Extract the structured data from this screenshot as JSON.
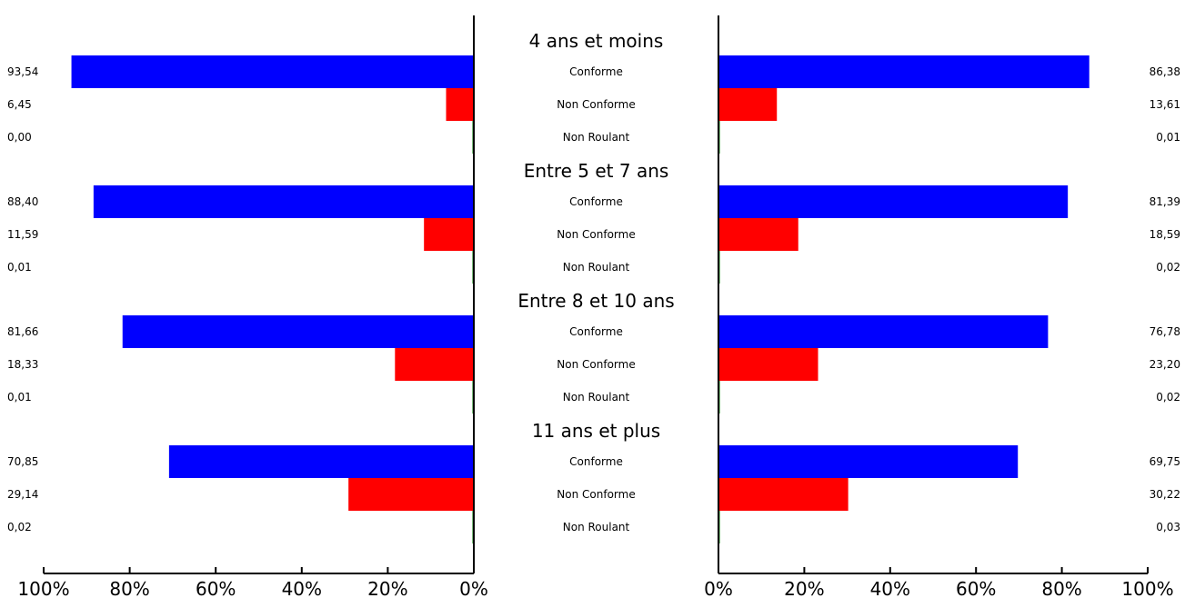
{
  "chart_data": {
    "type": "bar",
    "orientation": "horizontal-butterfly",
    "categories": [
      "Conforme",
      "Non Conforme",
      "Non Roulant"
    ],
    "groups": [
      {
        "title": "4 ans et moins",
        "left_labels": [
          "93,54",
          "6,45",
          "0,00"
        ],
        "left_values": [
          93.54,
          6.45,
          0.0
        ],
        "right_labels": [
          "86,38",
          "13,61",
          "0,01"
        ],
        "right_values": [
          86.38,
          13.61,
          0.01
        ]
      },
      {
        "title": "Entre 5 et 7 ans",
        "left_labels": [
          "88,40",
          "11,59",
          "0,01"
        ],
        "left_values": [
          88.4,
          11.59,
          0.01
        ],
        "right_labels": [
          "81,39",
          "18,59",
          "0,02"
        ],
        "right_values": [
          81.39,
          18.59,
          0.02
        ]
      },
      {
        "title": "Entre 8 et 10 ans",
        "left_labels": [
          "81,66",
          "18,33",
          "0,01"
        ],
        "left_values": [
          81.66,
          18.33,
          0.01
        ],
        "right_labels": [
          "76,78",
          "23,20",
          "0,02"
        ],
        "right_values": [
          76.78,
          23.2,
          0.02
        ]
      },
      {
        "title": "11 ans et plus",
        "left_labels": [
          "70,85",
          "29,14",
          "0,02"
        ],
        "left_values": [
          70.85,
          29.14,
          0.02
        ],
        "right_labels": [
          "69,75",
          "30,22",
          "0,03"
        ],
        "right_values": [
          69.75,
          30.22,
          0.03
        ]
      }
    ],
    "category_colors": [
      "#0000ff",
      "#ff0000",
      "#008000"
    ],
    "left_axis_ticks": [
      "100%",
      "80%",
      "60%",
      "40%",
      "20%",
      "0%"
    ],
    "right_axis_ticks": [
      "0%",
      "20%",
      "40%",
      "60%",
      "80%",
      "100%"
    ],
    "xlim": [
      0,
      100
    ],
    "grid": false
  }
}
